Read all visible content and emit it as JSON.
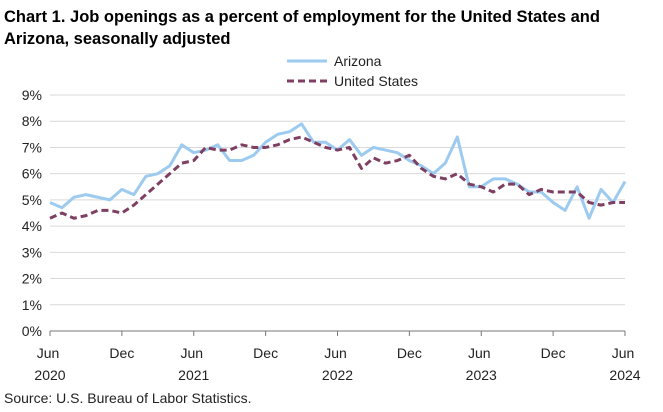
{
  "chart_data": {
    "type": "line",
    "title": "Chart 1. Job openings as a percent of employment for the United States and Arizona, seasonally adjusted",
    "source": "Source: U.S. Bureau of Labor Statistics.",
    "categories": [
      "Jun 2020",
      null,
      null,
      null,
      null,
      null,
      "Dec",
      null,
      null,
      null,
      null,
      null,
      "Jun 2021",
      null,
      null,
      null,
      null,
      null,
      "Dec",
      null,
      null,
      null,
      null,
      null,
      "Jun 2022",
      null,
      null,
      null,
      null,
      null,
      "Dec",
      null,
      null,
      null,
      null,
      null,
      "Jun 2023",
      null,
      null,
      null,
      null,
      null,
      "Dec",
      null,
      null,
      null,
      null,
      null,
      "Jun 2024"
    ],
    "series": [
      {
        "name": "Arizona",
        "color": "#9dcbf0",
        "dashed": false,
        "values": [
          4.9,
          4.7,
          5.1,
          5.2,
          5.1,
          5.0,
          5.4,
          5.2,
          5.9,
          6.0,
          6.3,
          7.1,
          6.8,
          6.9,
          7.1,
          6.5,
          6.5,
          6.7,
          7.2,
          7.5,
          7.6,
          7.9,
          7.2,
          7.2,
          6.9,
          7.3,
          6.7,
          7.0,
          6.9,
          6.8,
          6.5,
          6.3,
          6.0,
          6.4,
          7.4,
          5.5,
          5.5,
          5.8,
          5.8,
          5.6,
          5.3,
          5.3,
          4.9,
          4.6,
          5.5,
          4.3,
          5.4,
          4.9,
          5.7
        ]
      },
      {
        "name": "United States",
        "color": "#7f3f62",
        "dashed": true,
        "values": [
          4.3,
          4.5,
          4.3,
          4.4,
          4.6,
          4.6,
          4.5,
          4.8,
          5.2,
          5.6,
          6.0,
          6.4,
          6.5,
          7.0,
          6.9,
          6.9,
          7.1,
          7.0,
          7.0,
          7.1,
          7.3,
          7.4,
          7.2,
          7.0,
          6.9,
          7.0,
          6.2,
          6.6,
          6.4,
          6.5,
          6.7,
          6.2,
          5.9,
          5.8,
          6.0,
          5.6,
          5.5,
          5.3,
          5.6,
          5.6,
          5.2,
          5.4,
          5.3,
          5.3,
          5.3,
          4.9,
          4.8,
          4.9,
          4.9
        ]
      }
    ],
    "ylim": [
      0,
      9
    ],
    "yticks": [
      {
        "value": 0,
        "label": "0%"
      },
      {
        "value": 1,
        "label": "1%"
      },
      {
        "value": 2,
        "label": "2%"
      },
      {
        "value": 3,
        "label": "3%"
      },
      {
        "value": 4,
        "label": "4%"
      },
      {
        "value": 5,
        "label": "5%"
      },
      {
        "value": 6,
        "label": "6%"
      },
      {
        "value": 7,
        "label": "7%"
      },
      {
        "value": 8,
        "label": "8%"
      },
      {
        "value": 9,
        "label": "9%"
      }
    ],
    "grid": true,
    "legend": "top"
  }
}
